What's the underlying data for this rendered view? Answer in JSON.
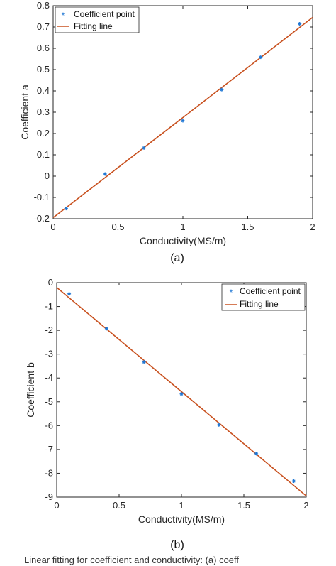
{
  "chart_data": [
    {
      "type": "scatter",
      "panel_label": "(a)",
      "xlabel": "Conductivity(MS/m)",
      "ylabel": "Coefficient a",
      "xlim": [
        0,
        2
      ],
      "ylim": [
        -0.2,
        0.8
      ],
      "xticks": [
        "0",
        "0.5",
        "1",
        "1.5",
        "2"
      ],
      "yticks": [
        "-0.2",
        "-0.1",
        "0",
        "0.1",
        "0.2",
        "0.3",
        "0.4",
        "0.5",
        "0.6",
        "0.7",
        "0.8"
      ],
      "legend": {
        "position": "top-left"
      },
      "series": [
        {
          "name": "Coefficient point",
          "kind": "marker",
          "color": "#1f77d4",
          "x": [
            0.1,
            0.4,
            0.7,
            1.0,
            1.3,
            1.6,
            1.9
          ],
          "y": [
            -0.152,
            0.01,
            0.132,
            0.26,
            0.406,
            0.558,
            0.715
          ]
        },
        {
          "name": "Fitting line",
          "kind": "line",
          "color": "#c8501e",
          "x": [
            0,
            2
          ],
          "y": [
            -0.195,
            0.745
          ]
        }
      ]
    },
    {
      "type": "scatter",
      "panel_label": "(b)",
      "xlabel": "Conductivity(MS/m)",
      "ylabel": "Coefficient b",
      "xlim": [
        0,
        2
      ],
      "ylim": [
        -9,
        0
      ],
      "xticks": [
        "0",
        "0.5",
        "1",
        "1.5",
        "2"
      ],
      "yticks": [
        "0",
        "-1",
        "-2",
        "-3",
        "-4",
        "-5",
        "-6",
        "-7",
        "-8",
        "-9"
      ],
      "legend": {
        "position": "top-right"
      },
      "series": [
        {
          "name": "Coefficient point",
          "kind": "marker",
          "color": "#1f77d4",
          "x": [
            0.1,
            0.4,
            0.7,
            1.0,
            1.3,
            1.6,
            1.9
          ],
          "y": [
            -0.47,
            -1.93,
            -3.33,
            -4.67,
            -5.97,
            -7.18,
            -8.33
          ]
        },
        {
          "name": "Fitting line",
          "kind": "line",
          "color": "#c8501e",
          "x": [
            0,
            2
          ],
          "y": [
            -0.2,
            -8.95
          ]
        }
      ]
    }
  ],
  "caption": {
    "text": "Linear fitting for coefficient and conductivity: (a) coeff"
  }
}
